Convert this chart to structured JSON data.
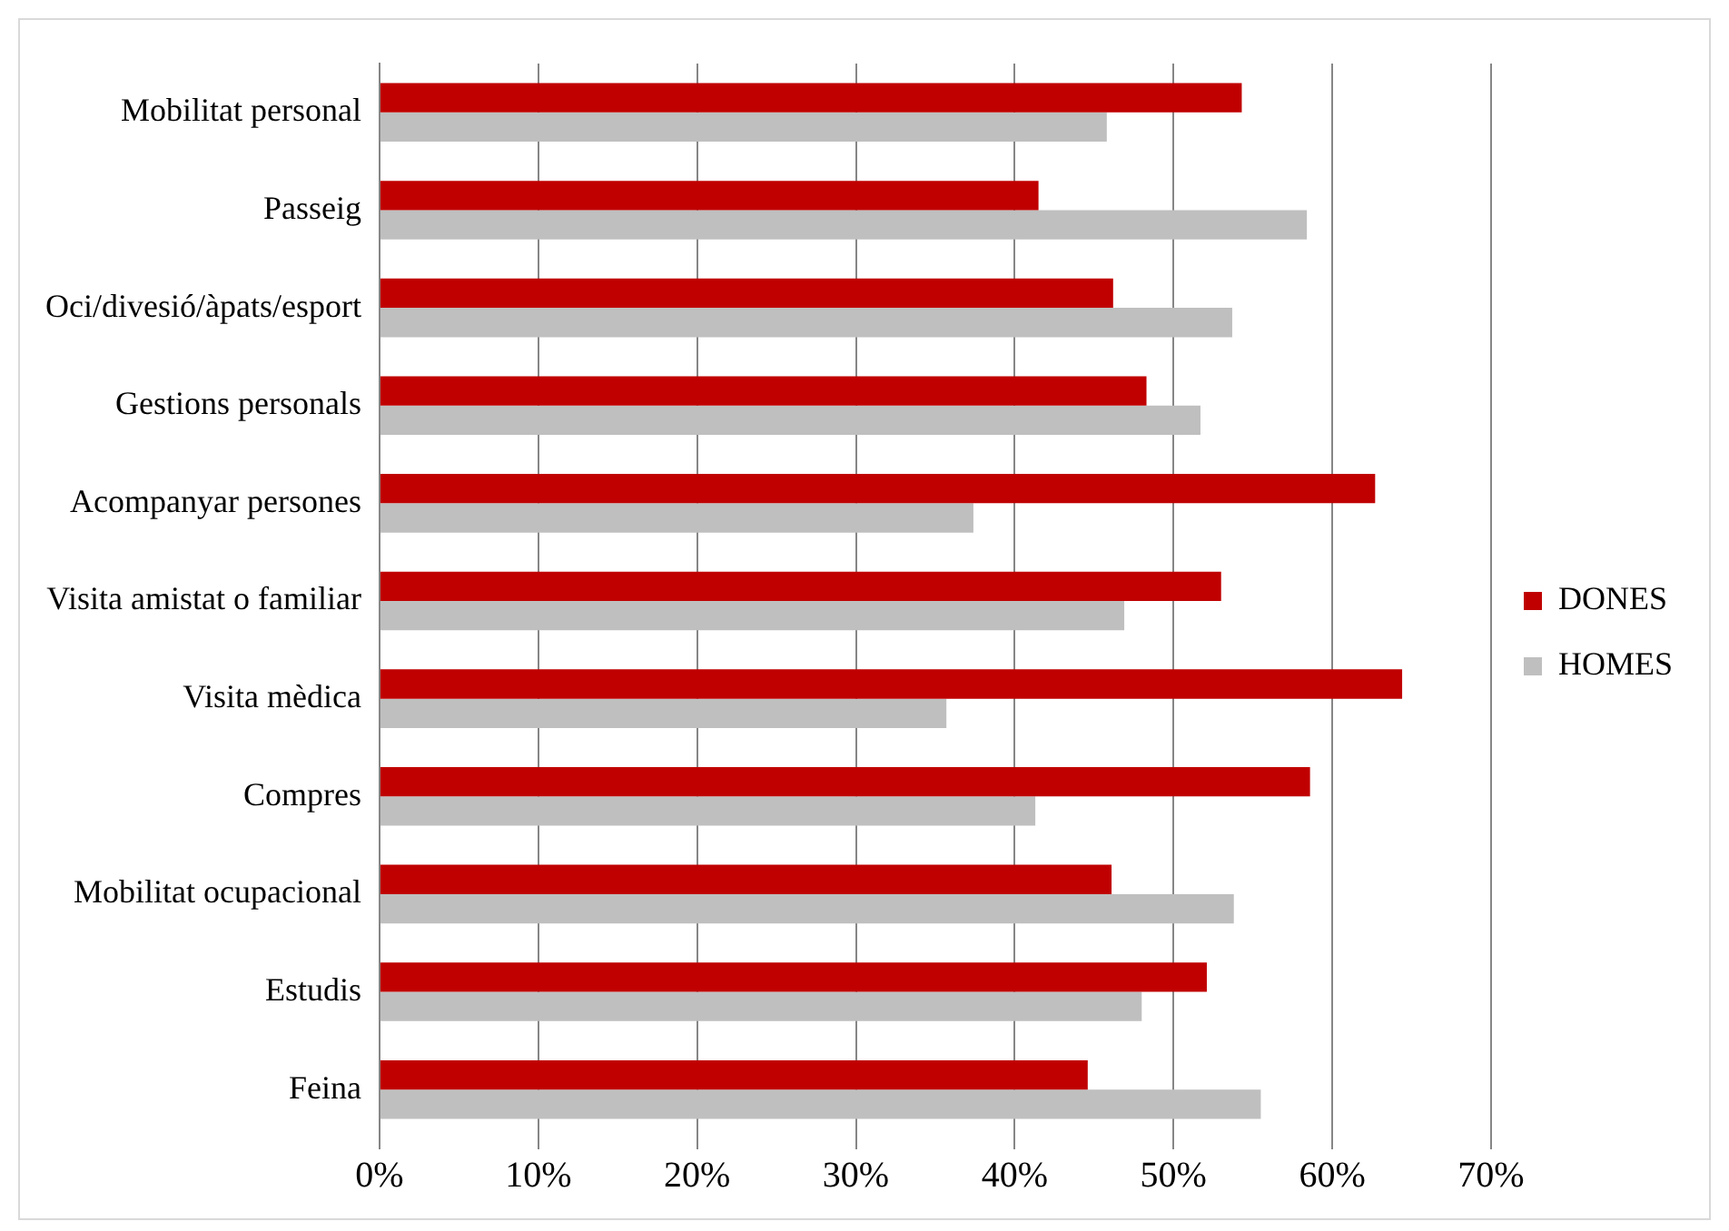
{
  "chart_data": {
    "type": "bar",
    "orientation": "horizontal",
    "categories": [
      "Mobilitat personal",
      "Passeig",
      "Oci/divesió/àpats/esport",
      "Gestions personals",
      "Acompanyar persones",
      "Visita amistat o familiar",
      "Visita mèdica",
      "Compres",
      "Mobilitat ocupacional",
      "Estudis",
      "Feina"
    ],
    "series": [
      {
        "name": "DONES",
        "color": "#c00000",
        "values": [
          54.3,
          41.5,
          46.2,
          48.3,
          62.7,
          53.0,
          64.4,
          58.6,
          46.1,
          52.1,
          44.6
        ]
      },
      {
        "name": "HOMES",
        "color": "#bfbfbf",
        "values": [
          45.8,
          58.4,
          53.7,
          51.7,
          37.4,
          46.9,
          35.7,
          41.3,
          53.8,
          48.0,
          55.5
        ]
      }
    ],
    "xlim": [
      0,
      70
    ],
    "xticks": [
      {
        "value": 0,
        "label": "0%"
      },
      {
        "value": 10,
        "label": "10%"
      },
      {
        "value": 20,
        "label": "20%"
      },
      {
        "value": 30,
        "label": "30%"
      },
      {
        "value": 40,
        "label": "40%"
      },
      {
        "value": 50,
        "label": "50%"
      },
      {
        "value": 60,
        "label": "60%"
      },
      {
        "value": 70,
        "label": "70%"
      }
    ],
    "grid": "x",
    "legend": "right"
  }
}
